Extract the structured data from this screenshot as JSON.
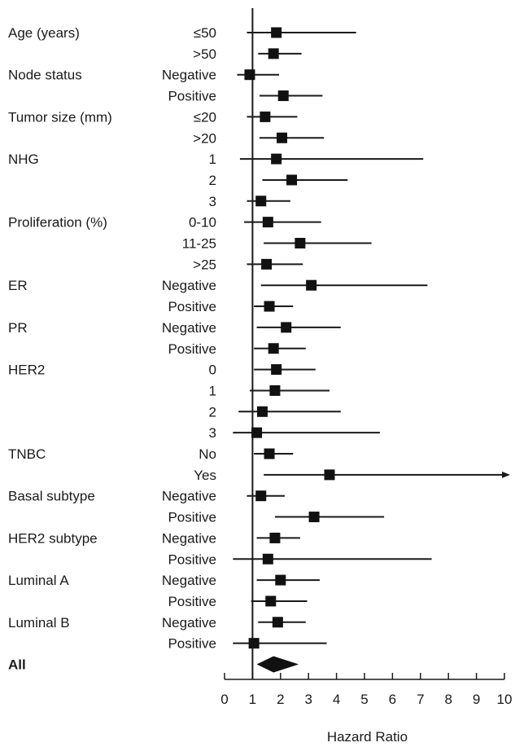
{
  "chart_data": {
    "type": "forest",
    "xlabel": "Hazard Ratio",
    "xlim": [
      0,
      10
    ],
    "xticks": [
      "0",
      "1",
      "2",
      "3",
      "4",
      "5",
      "6",
      "7",
      "8",
      "9",
      "10"
    ],
    "reference_line": 1,
    "rows": [
      {
        "group": "Age (years)",
        "level": "≤50",
        "hr": 1.85,
        "ci_low": 0.8,
        "ci_high": 4.7
      },
      {
        "group": "",
        "level": ">50",
        "hr": 1.75,
        "ci_low": 1.2,
        "ci_high": 2.75
      },
      {
        "group": "Node status",
        "level": "Negative",
        "hr": 0.9,
        "ci_low": 0.45,
        "ci_high": 1.95
      },
      {
        "group": "",
        "level": "Positive",
        "hr": 2.1,
        "ci_low": 1.25,
        "ci_high": 3.5
      },
      {
        "group": "Tumor size (mm)",
        "level": "≤20",
        "hr": 1.45,
        "ci_low": 0.8,
        "ci_high": 2.6
      },
      {
        "group": "",
        "level": ">20",
        "hr": 2.05,
        "ci_low": 1.25,
        "ci_high": 3.55
      },
      {
        "group": "NHG",
        "level": "1",
        "hr": 1.85,
        "ci_low": 0.55,
        "ci_high": 7.1
      },
      {
        "group": "",
        "level": "2",
        "hr": 2.4,
        "ci_low": 1.35,
        "ci_high": 4.4
      },
      {
        "group": "",
        "level": "3",
        "hr": 1.3,
        "ci_low": 0.8,
        "ci_high": 2.35
      },
      {
        "group": "Proliferation (%)",
        "level": "0-10",
        "hr": 1.55,
        "ci_low": 0.7,
        "ci_high": 3.45
      },
      {
        "group": "",
        "level": "11-25",
        "hr": 2.7,
        "ci_low": 1.4,
        "ci_high": 5.25
      },
      {
        "group": "",
        "level": ">25",
        "hr": 1.5,
        "ci_low": 0.8,
        "ci_high": 2.8
      },
      {
        "group": "ER",
        "level": "Negative",
        "hr": 3.1,
        "ci_low": 1.3,
        "ci_high": 7.25
      },
      {
        "group": "",
        "level": "Positive",
        "hr": 1.6,
        "ci_low": 1.05,
        "ci_high": 2.45
      },
      {
        "group": "PR",
        "level": "Negative",
        "hr": 2.2,
        "ci_low": 1.15,
        "ci_high": 4.15
      },
      {
        "group": "",
        "level": "Positive",
        "hr": 1.75,
        "ci_low": 1.05,
        "ci_high": 2.9
      },
      {
        "group": "HER2",
        "level": "0",
        "hr": 1.85,
        "ci_low": 1.05,
        "ci_high": 3.25
      },
      {
        "group": "",
        "level": "1",
        "hr": 1.8,
        "ci_low": 0.9,
        "ci_high": 3.75
      },
      {
        "group": "",
        "level": "2",
        "hr": 1.35,
        "ci_low": 0.5,
        "ci_high": 4.15
      },
      {
        "group": "",
        "level": "3",
        "hr": 1.15,
        "ci_low": 0.3,
        "ci_high": 5.55
      },
      {
        "group": "TNBC",
        "level": "No",
        "hr": 1.6,
        "ci_low": 1.05,
        "ci_high": 2.45
      },
      {
        "group": "",
        "level": "Yes",
        "hr": 3.75,
        "ci_low": 1.4,
        "ci_high": 10,
        "arrow": true
      },
      {
        "group": "Basal subtype",
        "level": "Negative",
        "hr": 1.3,
        "ci_low": 0.8,
        "ci_high": 2.15
      },
      {
        "group": "",
        "level": "Positive",
        "hr": 3.2,
        "ci_low": 1.8,
        "ci_high": 5.7
      },
      {
        "group": "HER2 subtype",
        "level": "Negative",
        "hr": 1.8,
        "ci_low": 1.15,
        "ci_high": 2.7
      },
      {
        "group": "",
        "level": "Positive",
        "hr": 1.55,
        "ci_low": 0.3,
        "ci_high": 7.4
      },
      {
        "group": "Luminal A",
        "level": "Negative",
        "hr": 2.0,
        "ci_low": 1.15,
        "ci_high": 3.4
      },
      {
        "group": "",
        "level": "Positive",
        "hr": 1.65,
        "ci_low": 0.95,
        "ci_high": 2.95
      },
      {
        "group": "Luminal B",
        "level": "Negative",
        "hr": 1.9,
        "ci_low": 1.2,
        "ci_high": 2.9
      },
      {
        "group": "",
        "level": "Positive",
        "hr": 1.05,
        "ci_low": 0.3,
        "ci_high": 3.65
      }
    ],
    "overall": {
      "label": "All",
      "hr": 1.75,
      "ci_low": 1.15,
      "ci_high": 2.65
    }
  }
}
